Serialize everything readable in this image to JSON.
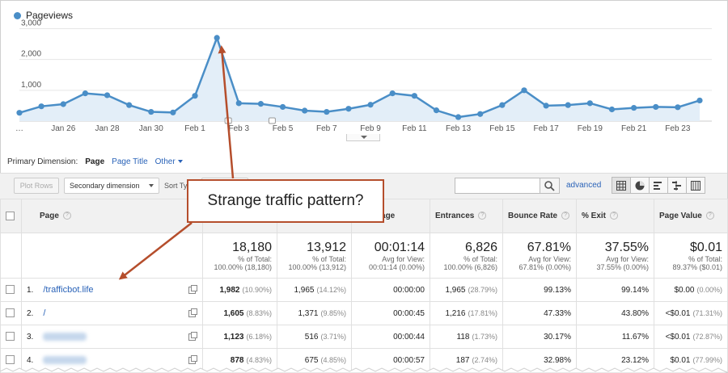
{
  "legend": {
    "label": "Pageviews",
    "color": "#4a8ec7"
  },
  "chart_data": {
    "type": "area",
    "title": "",
    "yticks": [
      "3,000",
      "2,000",
      "1,000"
    ],
    "ylim": [
      0,
      3300
    ],
    "x_labels_shown": [
      "…",
      "Jan 26",
      "Jan 28",
      "Jan 30",
      "Feb 1",
      "Feb 3",
      "Feb 5",
      "Feb 7",
      "Feb 9",
      "Feb 11",
      "Feb 13",
      "Feb 15",
      "Feb 17",
      "Feb 19",
      "Feb 21",
      "Feb 23"
    ],
    "series": [
      {
        "name": "Pageviews",
        "values": [
          270,
          480,
          550,
          900,
          840,
          520,
          300,
          280,
          820,
          2700,
          580,
          560,
          460,
          340,
          300,
          400,
          530,
          900,
          820,
          350,
          130,
          230,
          520,
          1000,
          500,
          520,
          580,
          380,
          430,
          460,
          450,
          670
        ]
      }
    ],
    "grid": true
  },
  "primary_dimension": {
    "label": "Primary Dimension:",
    "selected": "Page",
    "options": [
      "Page Title",
      "Other"
    ]
  },
  "toolbar": {
    "plot_rows": "Plot Rows",
    "secondary_dimension": "Secondary dimension",
    "sort_type": "Sort Ty",
    "advanced": "advanced"
  },
  "table": {
    "headers": [
      "Page",
      "",
      "",
      "e on Page",
      "Entrances",
      "Bounce Rate",
      "% Exit",
      "Page Value"
    ],
    "totals": [
      {
        "value": "18,180",
        "sub1": "% of Total:",
        "sub2": "100.00% (18,180)"
      },
      {
        "value": "13,912",
        "sub1": "% of Total:",
        "sub2": "100.00% (13,912)"
      },
      {
        "value": "00:01:14",
        "sub1": "Avg for View:",
        "sub2": "00:01:14 (0.00%)"
      },
      {
        "value": "6,826",
        "sub1": "% of Total:",
        "sub2": "100.00% (6,826)"
      },
      {
        "value": "67.81%",
        "sub1": "Avg for View:",
        "sub2": "67.81% (0.00%)"
      },
      {
        "value": "37.55%",
        "sub1": "Avg for View:",
        "sub2": "37.55% (0.00%)"
      },
      {
        "value": "$0.01",
        "sub1": "% of Total:",
        "sub2": "89.37% ($0.01)"
      }
    ],
    "rows": [
      {
        "idx": "1.",
        "page": "/trafficbot.life",
        "pv": "1,982",
        "pv_pct": "(10.90%)",
        "upv": "1,965",
        "upv_pct": "(14.12%)",
        "time": "00:00:00",
        "ent": "1,965",
        "ent_pct": "(28.79%)",
        "bounce": "99.13%",
        "exit": "99.14%",
        "value": "$0.00",
        "value_pct": "(0.00%)"
      },
      {
        "idx": "2.",
        "page": "/",
        "pv": "1,605",
        "pv_pct": "(8.83%)",
        "upv": "1,371",
        "upv_pct": "(9.85%)",
        "time": "00:00:45",
        "ent": "1,216",
        "ent_pct": "(17.81%)",
        "bounce": "47.33%",
        "exit": "43.80%",
        "value": "<$0.01",
        "value_pct": "(71.31%)"
      },
      {
        "idx": "3.",
        "page": "",
        "pv": "1,123",
        "pv_pct": "(6.18%)",
        "upv": "516",
        "upv_pct": "(3.71%)",
        "time": "00:00:44",
        "ent": "118",
        "ent_pct": "(1.73%)",
        "bounce": "30.17%",
        "exit": "11.67%",
        "value": "<$0.01",
        "value_pct": "(72.87%)"
      },
      {
        "idx": "4.",
        "page": "",
        "pv": "878",
        "pv_pct": "(4.83%)",
        "upv": "675",
        "upv_pct": "(4.85%)",
        "time": "00:00:57",
        "ent": "187",
        "ent_pct": "(2.74%)",
        "bounce": "32.98%",
        "exit": "23.12%",
        "value": "$0.01",
        "value_pct": "(77.99%)"
      }
    ]
  },
  "annotation": {
    "text": "Strange traffic pattern?",
    "color": "#b54e2c"
  }
}
